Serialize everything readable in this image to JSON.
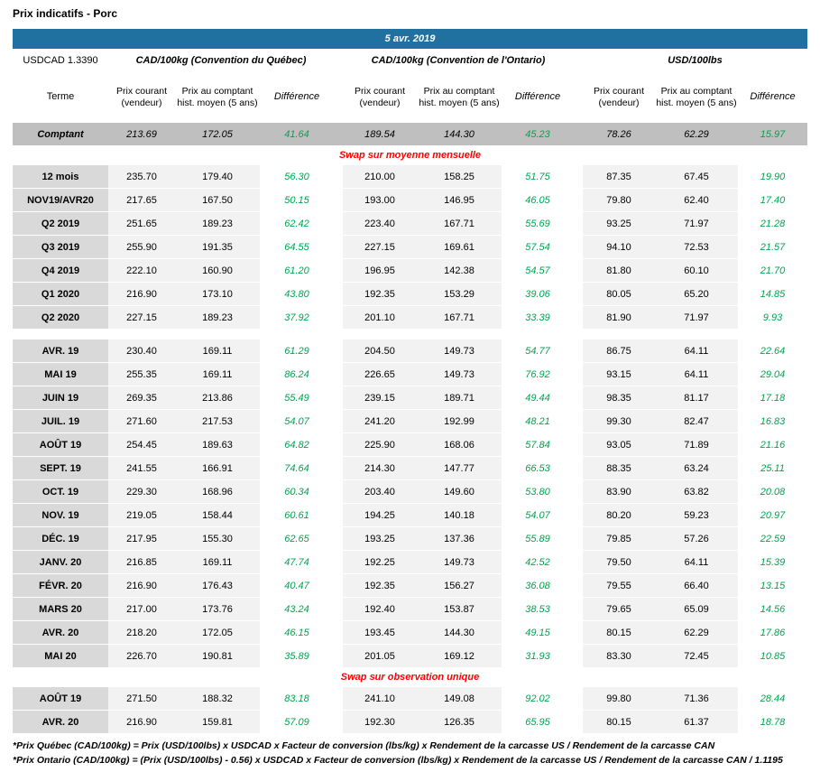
{
  "page": {
    "title": "Prix indicatifs - Porc",
    "date": "5 avr. 2019",
    "usdcad": "USDCAD 1.3390"
  },
  "table": {
    "terme_header": "Terme",
    "groups": [
      {
        "label": "CAD/100kg (Convention du Québec)",
        "cols": [
          "Prix courant (vendeur)",
          "Prix au comptant hist. moyen (5 ans)",
          "Différence"
        ]
      },
      {
        "label": "CAD/100kg (Convention de l'Ontario)",
        "cols": [
          "Prix courant (vendeur)",
          "Prix au comptant hist. moyen (5 ans)",
          "Différence"
        ]
      },
      {
        "label": "USD/100lbs",
        "cols": [
          "Prix courant (vendeur)",
          "Prix au comptant hist. moyen (5 ans)",
          "Différence"
        ]
      }
    ],
    "spot": {
      "terme": "Comptant",
      "values": [
        "213.69",
        "172.05",
        "41.64",
        "189.54",
        "144.30",
        "45.23",
        "78.26",
        "62.29",
        "15.97"
      ]
    },
    "sections": [
      {
        "header": "Swap sur moyenne mensuelle",
        "blocks": [
          {
            "rows": [
              {
                "terme": "12 mois",
                "values": [
                  "235.70",
                  "179.40",
                  "56.30",
                  "210.00",
                  "158.25",
                  "51.75",
                  "87.35",
                  "67.45",
                  "19.90"
                ]
              },
              {
                "terme": "NOV19/AVR20",
                "values": [
                  "217.65",
                  "167.50",
                  "50.15",
                  "193.00",
                  "146.95",
                  "46.05",
                  "79.80",
                  "62.40",
                  "17.40"
                ]
              },
              {
                "terme": "Q2 2019",
                "values": [
                  "251.65",
                  "189.23",
                  "62.42",
                  "223.40",
                  "167.71",
                  "55.69",
                  "93.25",
                  "71.97",
                  "21.28"
                ]
              },
              {
                "terme": "Q3 2019",
                "values": [
                  "255.90",
                  "191.35",
                  "64.55",
                  "227.15",
                  "169.61",
                  "57.54",
                  "94.10",
                  "72.53",
                  "21.57"
                ]
              },
              {
                "terme": "Q4 2019",
                "values": [
                  "222.10",
                  "160.90",
                  "61.20",
                  "196.95",
                  "142.38",
                  "54.57",
                  "81.80",
                  "60.10",
                  "21.70"
                ]
              },
              {
                "terme": "Q1 2020",
                "values": [
                  "216.90",
                  "173.10",
                  "43.80",
                  "192.35",
                  "153.29",
                  "39.06",
                  "80.05",
                  "65.20",
                  "14.85"
                ]
              },
              {
                "terme": "Q2 2020",
                "values": [
                  "227.15",
                  "189.23",
                  "37.92",
                  "201.10",
                  "167.71",
                  "33.39",
                  "81.90",
                  "71.97",
                  "9.93"
                ]
              }
            ]
          },
          {
            "rows": [
              {
                "terme": "AVR. 19",
                "values": [
                  "230.40",
                  "169.11",
                  "61.29",
                  "204.50",
                  "149.73",
                  "54.77",
                  "86.75",
                  "64.11",
                  "22.64"
                ]
              },
              {
                "terme": "MAI 19",
                "values": [
                  "255.35",
                  "169.11",
                  "86.24",
                  "226.65",
                  "149.73",
                  "76.92",
                  "93.15",
                  "64.11",
                  "29.04"
                ]
              },
              {
                "terme": "JUIN 19",
                "values": [
                  "269.35",
                  "213.86",
                  "55.49",
                  "239.15",
                  "189.71",
                  "49.44",
                  "98.35",
                  "81.17",
                  "17.18"
                ]
              },
              {
                "terme": "JUIL. 19",
                "values": [
                  "271.60",
                  "217.53",
                  "54.07",
                  "241.20",
                  "192.99",
                  "48.21",
                  "99.30",
                  "82.47",
                  "16.83"
                ]
              },
              {
                "terme": "AOÛT 19",
                "values": [
                  "254.45",
                  "189.63",
                  "64.82",
                  "225.90",
                  "168.06",
                  "57.84",
                  "93.05",
                  "71.89",
                  "21.16"
                ]
              },
              {
                "terme": "SEPT. 19",
                "values": [
                  "241.55",
                  "166.91",
                  "74.64",
                  "214.30",
                  "147.77",
                  "66.53",
                  "88.35",
                  "63.24",
                  "25.11"
                ]
              },
              {
                "terme": "OCT. 19",
                "values": [
                  "229.30",
                  "168.96",
                  "60.34",
                  "203.40",
                  "149.60",
                  "53.80",
                  "83.90",
                  "63.82",
                  "20.08"
                ]
              },
              {
                "terme": "NOV. 19",
                "values": [
                  "219.05",
                  "158.44",
                  "60.61",
                  "194.25",
                  "140.18",
                  "54.07",
                  "80.20",
                  "59.23",
                  "20.97"
                ]
              },
              {
                "terme": "DÉC. 19",
                "values": [
                  "217.95",
                  "155.30",
                  "62.65",
                  "193.25",
                  "137.36",
                  "55.89",
                  "79.85",
                  "57.26",
                  "22.59"
                ]
              },
              {
                "terme": "JANV. 20",
                "values": [
                  "216.85",
                  "169.11",
                  "47.74",
                  "192.25",
                  "149.73",
                  "42.52",
                  "79.50",
                  "64.11",
                  "15.39"
                ]
              },
              {
                "terme": "FÉVR. 20",
                "values": [
                  "216.90",
                  "176.43",
                  "40.47",
                  "192.35",
                  "156.27",
                  "36.08",
                  "79.55",
                  "66.40",
                  "13.15"
                ]
              },
              {
                "terme": "MARS 20",
                "values": [
                  "217.00",
                  "173.76",
                  "43.24",
                  "192.40",
                  "153.87",
                  "38.53",
                  "79.65",
                  "65.09",
                  "14.56"
                ]
              },
              {
                "terme": "AVR. 20",
                "values": [
                  "218.20",
                  "172.05",
                  "46.15",
                  "193.45",
                  "144.30",
                  "49.15",
                  "80.15",
                  "62.29",
                  "17.86"
                ]
              },
              {
                "terme": "MAI 20",
                "values": [
                  "226.70",
                  "190.81",
                  "35.89",
                  "201.05",
                  "169.12",
                  "31.93",
                  "83.30",
                  "72.45",
                  "10.85"
                ]
              }
            ]
          }
        ]
      },
      {
        "header": "Swap sur observation unique",
        "blocks": [
          {
            "rows": [
              {
                "terme": "AOÛT 19",
                "values": [
                  "271.50",
                  "188.32",
                  "83.18",
                  "241.10",
                  "149.08",
                  "92.02",
                  "99.80",
                  "71.36",
                  "28.44"
                ]
              },
              {
                "terme": "AVR. 20",
                "values": [
                  "216.90",
                  "159.81",
                  "57.09",
                  "192.30",
                  "126.35",
                  "65.95",
                  "80.15",
                  "61.37",
                  "18.78"
                ]
              }
            ]
          }
        ]
      }
    ],
    "footnotes": [
      "*Prix Québec (CAD/100kg) = Prix (USD/100lbs) x USDCAD x Facteur de conversion (lbs/kg) x Rendement de la carcasse US / Rendement de la carcasse CAN",
      "*Prix Ontario (CAD/100kg) = (Prix (USD/100lbs) - 0.56) x USDCAD x Facteur de conversion (lbs/kg) x Rendement de la carcasse US / Rendement de la carcasse CAN / 1.1195"
    ]
  },
  "colors": {
    "banner": "#20719F",
    "positive": "#00A550",
    "section_header": "#FF0000",
    "terme_bg": "#D9D9D9",
    "spot_bg": "#BFBFBF",
    "cell_bg": "#F2F2F2"
  }
}
